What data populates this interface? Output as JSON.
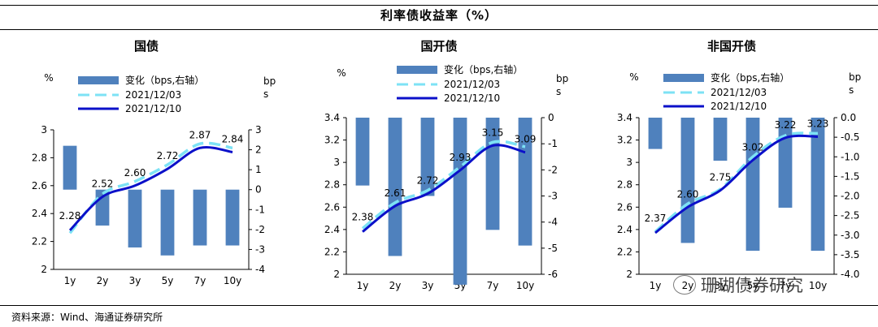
{
  "title": "利率债收益率（%）",
  "source": "资料来源：Wind、海通证券研究所",
  "watermark": "珊瑚债券研究",
  "colors": {
    "bar": "#4f81bd",
    "old_line": "#7de2f5",
    "new_line": "#0b10c9"
  },
  "chart_data": [
    {
      "type": "bar+line",
      "title": "国债",
      "ylabel_left": "%",
      "ylabel_right": "bps",
      "categories": [
        "1y",
        "2y",
        "3y",
        "5y",
        "7y",
        "10y"
      ],
      "left_ylim": [
        2,
        3
      ],
      "left_ticks": [
        "2",
        "2.2",
        "2.4",
        "2.6",
        "2.8",
        "3"
      ],
      "right_ylim": [
        -4,
        3
      ],
      "right_ticks": [
        "-4",
        "-3",
        "-2",
        "-1",
        "0",
        "1",
        "2",
        "3"
      ],
      "legend": [
        "变化（bps,右轴）",
        "2021/12/03",
        "2021/12/10"
      ],
      "series": [
        {
          "name": "变化（bps,右轴）",
          "type": "bar",
          "values": [
            2.2,
            -1.8,
            -2.9,
            -3.3,
            -2.8,
            -2.8
          ]
        },
        {
          "name": "2021/12/03",
          "type": "line",
          "values": [
            2.26,
            2.54,
            2.63,
            2.75,
            2.9,
            2.87
          ]
        },
        {
          "name": "2021/12/10",
          "type": "line",
          "values": [
            2.28,
            2.52,
            2.6,
            2.72,
            2.87,
            2.84
          ]
        }
      ],
      "labels": [
        "2.28",
        "2.52",
        "2.60",
        "2.72",
        "2.87",
        "2.84"
      ]
    },
    {
      "type": "bar+line",
      "title": "国开债",
      "ylabel_left": "%",
      "ylabel_right": "bps",
      "categories": [
        "1y",
        "2y",
        "3y",
        "5y",
        "7y",
        "10y"
      ],
      "left_ylim": [
        2,
        3.4
      ],
      "left_ticks": [
        "2",
        "2.2",
        "2.4",
        "2.6",
        "2.8",
        "3",
        "3.2",
        "3.4"
      ],
      "right_ylim": [
        -6,
        0
      ],
      "right_ticks": [
        "-6",
        "-5",
        "-4",
        "-3",
        "-2",
        "-1",
        "0"
      ],
      "legend": [
        "变化（bps,右轴）",
        "2021/12/03",
        "2021/12/10"
      ],
      "series": [
        {
          "name": "变化（bps,右轴）",
          "type": "bar",
          "values": [
            -2.6,
            -5.3,
            -3.0,
            -6.4,
            -4.3,
            -4.9
          ]
        },
        {
          "name": "2021/12/03",
          "type": "line",
          "values": [
            2.41,
            2.64,
            2.75,
            2.96,
            3.18,
            3.14
          ]
        },
        {
          "name": "2021/12/10",
          "type": "line",
          "values": [
            2.38,
            2.61,
            2.72,
            2.93,
            3.15,
            3.09
          ]
        }
      ],
      "labels": [
        "2.38",
        "2.61",
        "2.72",
        "2.93",
        "3.15",
        "3.09"
      ]
    },
    {
      "type": "bar+line",
      "title": "非国开债",
      "ylabel_left": "%",
      "ylabel_right": "bps",
      "categories": [
        "1y",
        "2y",
        "3y",
        "5y",
        "7y",
        "10y"
      ],
      "left_ylim": [
        2,
        3.4
      ],
      "left_ticks": [
        "2",
        "2.2",
        "2.4",
        "2.6",
        "2.8",
        "3",
        "3.2",
        "3.4"
      ],
      "right_ylim": [
        -4,
        0
      ],
      "right_ticks": [
        "-4.0",
        "-3.5",
        "-3.0",
        "-2.5",
        "-2.0",
        "-1.5",
        "-1.0",
        "-0.5",
        "0.0"
      ],
      "legend": [
        "变化（bps,右轴）",
        "2021/12/03",
        "2021/12/10"
      ],
      "series": [
        {
          "name": "变化（bps,右轴）",
          "type": "bar",
          "values": [
            -0.8,
            -3.2,
            -1.1,
            -3.4,
            -2.3,
            -3.4
          ]
        },
        {
          "name": "2021/12/03",
          "type": "line",
          "values": [
            2.38,
            2.63,
            2.76,
            3.05,
            3.24,
            3.26
          ]
        },
        {
          "name": "2021/12/10",
          "type": "line",
          "values": [
            2.37,
            2.6,
            2.75,
            3.02,
            3.22,
            3.23
          ]
        }
      ],
      "labels": [
        "2.37",
        "2.60",
        "2.75",
        "3.02",
        "3.22",
        "3.23"
      ]
    }
  ]
}
